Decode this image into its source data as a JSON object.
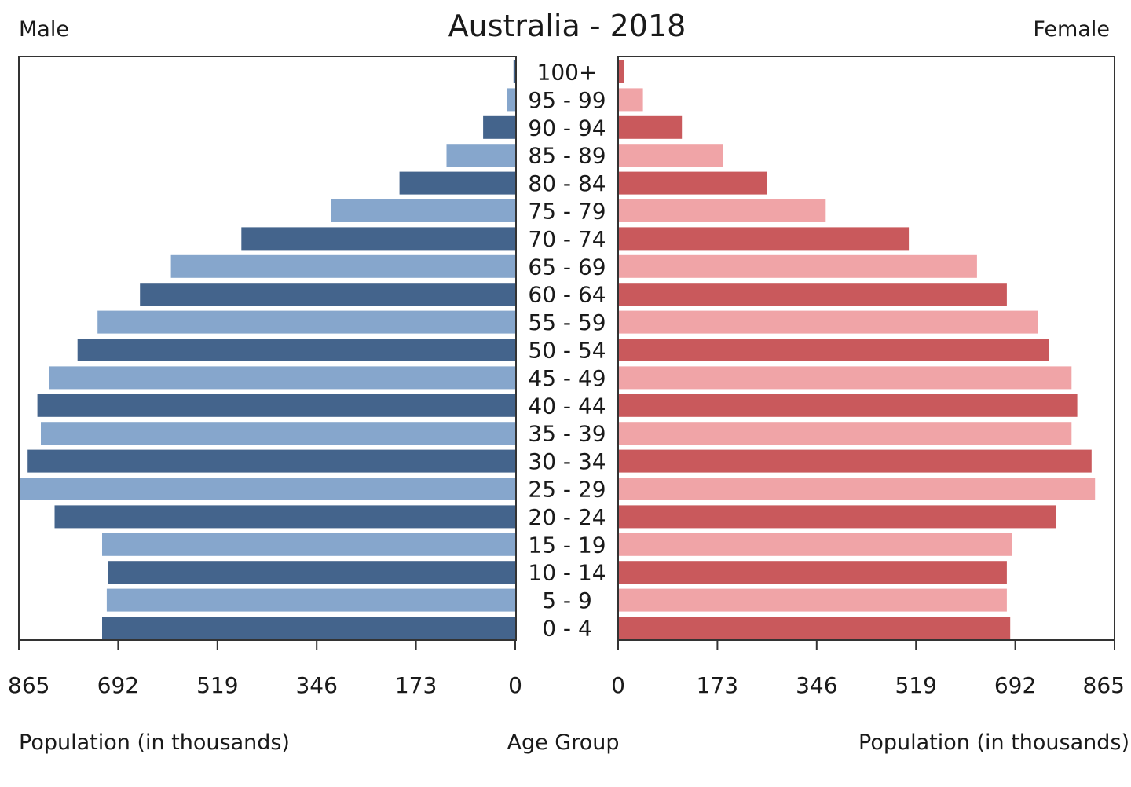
{
  "chart_data": {
    "type": "bar",
    "title": "Australia - 2018",
    "left_label": "Male",
    "right_label": "Female",
    "xlabel_left": "Population (in thousands)",
    "xlabel_center": "Age Group",
    "xlabel_right": "Population (in thousands)",
    "xlim": [
      0,
      865
    ],
    "x_ticks": [
      "0",
      "173",
      "346",
      "519",
      "692",
      "865"
    ],
    "categories": [
      "100+",
      "95 - 99",
      "90 - 94",
      "85 - 89",
      "80 - 84",
      "75 - 79",
      "70 - 74",
      "65 - 69",
      "60 - 64",
      "55 - 59",
      "50 - 54",
      "45 - 49",
      "40 - 44",
      "35 - 39",
      "30 - 34",
      "25 - 29",
      "20 - 24",
      "15 - 19",
      "10 - 14",
      "5 - 9",
      "0 - 4"
    ],
    "series": [
      {
        "name": "Male",
        "values": [
          3,
          15,
          56,
          120,
          202,
          321,
          478,
          601,
          655,
          729,
          764,
          814,
          834,
          828,
          851,
          865,
          804,
          721,
          711,
          713,
          721
        ]
      },
      {
        "name": "Female",
        "values": [
          9,
          42,
          110,
          182,
          259,
          361,
          506,
          625,
          677,
          731,
          751,
          790,
          800,
          790,
          825,
          831,
          763,
          686,
          677,
          677,
          683
        ]
      }
    ],
    "colors": {
      "male_dark": "#44648c",
      "male_light": "#86a6cc",
      "female_dark": "#c9595c",
      "female_light": "#f0a4a7"
    },
    "grid": false,
    "legend": "none"
  }
}
